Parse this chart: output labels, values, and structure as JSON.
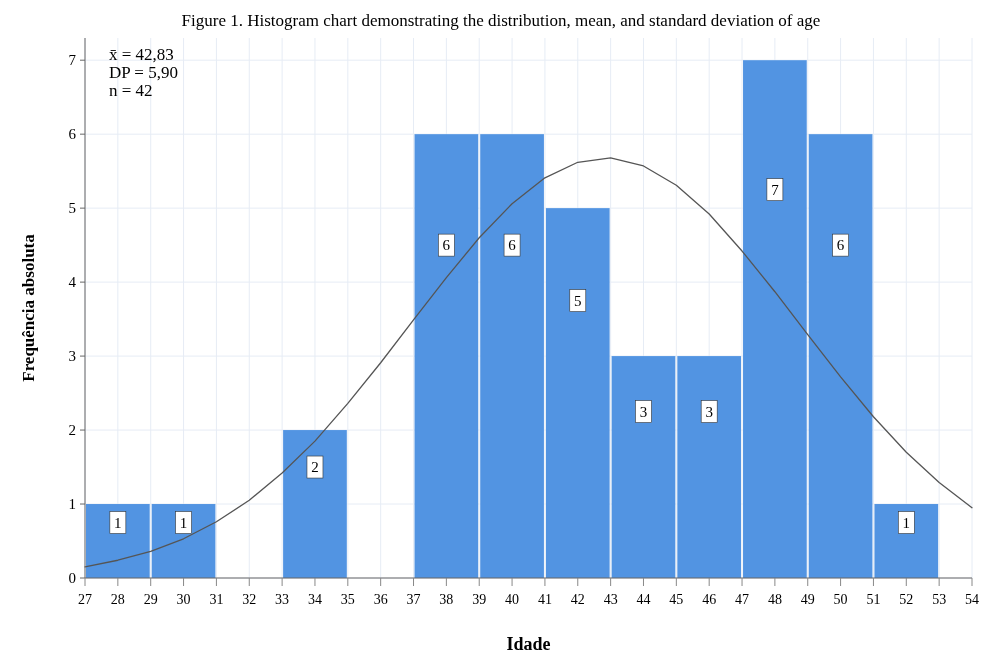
{
  "chart_data": {
    "type": "histogram",
    "title": "Figure 1. Histogram chart demonstrating the distribution, mean, and standard deviation of age",
    "xlabel": "Idade",
    "ylabel": "Frequência absoluta",
    "bins": [
      27,
      29,
      31,
      33,
      35,
      37,
      39,
      41,
      43,
      45,
      47,
      49,
      51,
      53
    ],
    "values": [
      1,
      1,
      0,
      2,
      0,
      6,
      6,
      5,
      3,
      3,
      7,
      6,
      1
    ],
    "color": "#5294e2",
    "value_labels": [
      "1",
      "1",
      null,
      "2",
      null,
      "6",
      "6",
      "5",
      "3",
      "3",
      "7",
      "6",
      "1"
    ],
    "series": [
      {
        "type": "line",
        "color": "#555555",
        "x": [
          27,
          28,
          29,
          30,
          31,
          32,
          33,
          34,
          35,
          36,
          37,
          38,
          39,
          40,
          41,
          42,
          43,
          44,
          45,
          46,
          47,
          48,
          49,
          50,
          51,
          52,
          53,
          54
        ],
        "values": [
          0.15,
          0.24,
          0.36,
          0.53,
          0.76,
          1.05,
          1.42,
          1.85,
          2.36,
          2.91,
          3.49,
          4.06,
          4.6,
          5.06,
          5.41,
          5.62,
          5.68,
          5.57,
          5.31,
          4.92,
          4.42,
          3.87,
          3.29,
          2.72,
          2.18,
          1.7,
          1.29,
          0.95
        ]
      }
    ],
    "annotations": [
      "x̄ = 42,83",
      "DP = 5,90",
      "n = 42"
    ],
    "xlim": [
      27,
      54
    ],
    "xticks": [
      27,
      28,
      29,
      30,
      31,
      32,
      33,
      34,
      35,
      36,
      37,
      38,
      39,
      40,
      41,
      42,
      43,
      44,
      45,
      46,
      47,
      48,
      49,
      50,
      51,
      52,
      53,
      54
    ],
    "ylim": [
      0,
      7.3
    ],
    "yticks": [
      0,
      1,
      2,
      3,
      4,
      5,
      6,
      7
    ],
    "grid": true
  }
}
